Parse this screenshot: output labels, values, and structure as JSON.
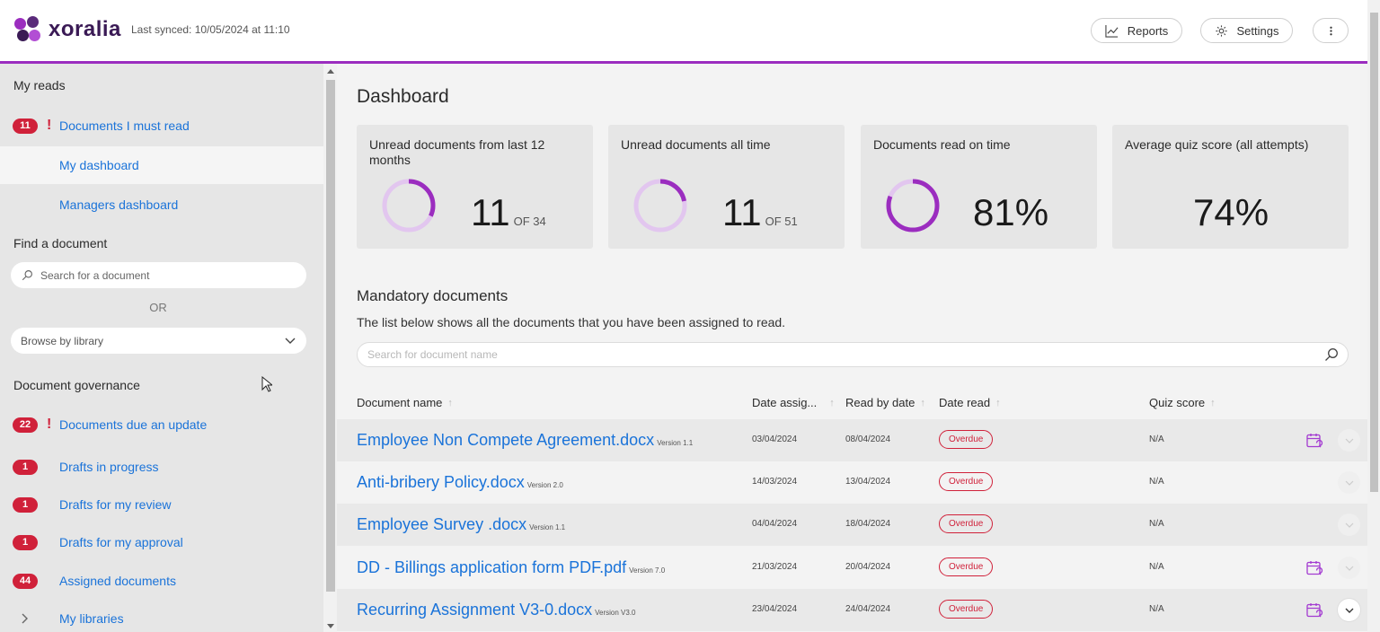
{
  "brand": {
    "name": "xoralia",
    "colors": {
      "accent": "#9b2dbf",
      "link": "#1a73d9",
      "danger": "#d0213a"
    }
  },
  "header": {
    "synced": "Last synced: 10/05/2024 at 11:10",
    "reports_label": "Reports",
    "settings_label": "Settings",
    "reports_icon": "chart-line-icon",
    "settings_icon": "gear-icon",
    "more_icon": "more-vertical-icon"
  },
  "sidebar": {
    "my_reads": "My reads",
    "must_read": {
      "badge": "11",
      "alert": "!",
      "label": "Documents I must read"
    },
    "my_dashboard": "My dashboard",
    "managers_dashboard": "Managers dashboard",
    "find_document": "Find a document",
    "search_placeholder": "Search for a document",
    "or": "OR",
    "browse_label": "Browse by library",
    "governance": "Document governance",
    "due_update": {
      "badge": "22",
      "alert": "!",
      "label": "Documents due an update"
    },
    "drafts_progress": {
      "badge": "1",
      "label": "Drafts in progress"
    },
    "drafts_review": {
      "badge": "1",
      "label": "Drafts for my review"
    },
    "drafts_approval": {
      "badge": "1",
      "label": "Drafts for my approval"
    },
    "assigned": {
      "badge": "44",
      "label": "Assigned documents"
    },
    "libraries": {
      "label": "My libraries"
    }
  },
  "dashboard": {
    "title": "Dashboard",
    "cards": [
      {
        "title": "Unread documents from last 12 months",
        "value": "11",
        "of": "OF 34",
        "progress": 0.32
      },
      {
        "title": "Unread documents all time",
        "value": "11",
        "of": "OF 51",
        "progress": 0.22
      },
      {
        "title": "Documents read on time",
        "value": "81%",
        "of": "",
        "progress": 0.81
      },
      {
        "title": "Average quiz score (all attempts)",
        "value": "74%",
        "of": ""
      }
    ]
  },
  "mandatory": {
    "title": "Mandatory documents",
    "description": "The list below shows all the documents that you have been assigned to read.",
    "search_placeholder": "Search for document name",
    "columns": {
      "name": "Document name",
      "assigned": "Date assig...",
      "read_by": "Read by date",
      "date_read": "Date read",
      "quiz": "Quiz score",
      "sort": "↑"
    },
    "rows": [
      {
        "name": "Employee Non Compete Agreement.docx",
        "version": "Version 1.1",
        "assigned": "03/04/2024",
        "read_by": "08/04/2024",
        "status": "Overdue",
        "quiz": "N/A"
      },
      {
        "name": "Anti-bribery Policy.docx",
        "version": "Version 2.0",
        "assigned": "14/03/2024",
        "read_by": "13/04/2024",
        "status": "Overdue",
        "quiz": "N/A"
      },
      {
        "name": "Employee Survey .docx",
        "version": "Version 1.1",
        "assigned": "04/04/2024",
        "read_by": "18/04/2024",
        "status": "Overdue",
        "quiz": "N/A"
      },
      {
        "name": "DD - Billings application form PDF.pdf",
        "version": "Version 7.0",
        "assigned": "21/03/2024",
        "read_by": "20/04/2024",
        "status": "Overdue",
        "quiz": "N/A"
      },
      {
        "name": "Recurring Assignment V3-0.docx",
        "version": "Version V3.0",
        "assigned": "23/04/2024",
        "read_by": "24/04/2024",
        "status": "Overdue",
        "quiz": "N/A"
      }
    ]
  }
}
